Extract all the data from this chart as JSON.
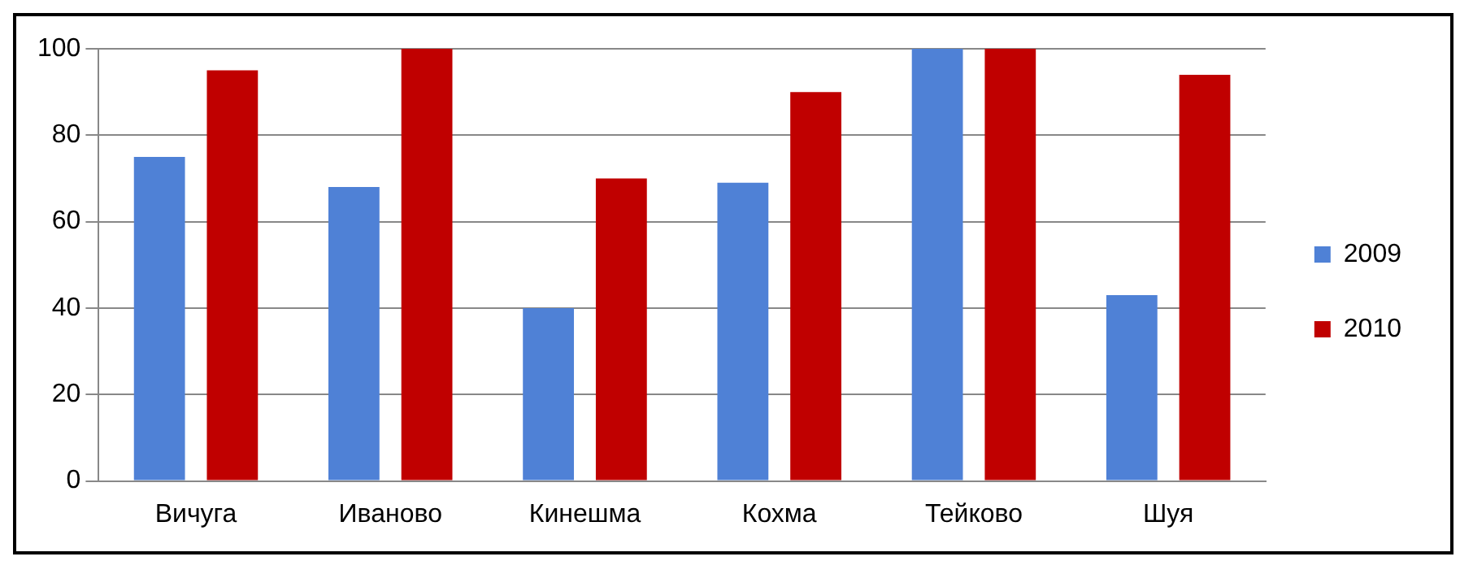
{
  "chart_data": {
    "type": "bar",
    "categories": [
      "Вичуга",
      "Иваново",
      "Кинешма",
      "Кохма",
      "Тейково",
      "Шуя"
    ],
    "series": [
      {
        "name": "2009",
        "color": "#4f81d6",
        "values": [
          75,
          68,
          40,
          69,
          100,
          43
        ]
      },
      {
        "name": "2010",
        "color": "#c00000",
        "values": [
          95,
          100,
          70,
          90,
          100,
          94
        ]
      }
    ],
    "ylim": [
      0,
      100
    ],
    "yticks": [
      0,
      20,
      40,
      60,
      80,
      100
    ],
    "grid": "y",
    "legend": "right"
  }
}
